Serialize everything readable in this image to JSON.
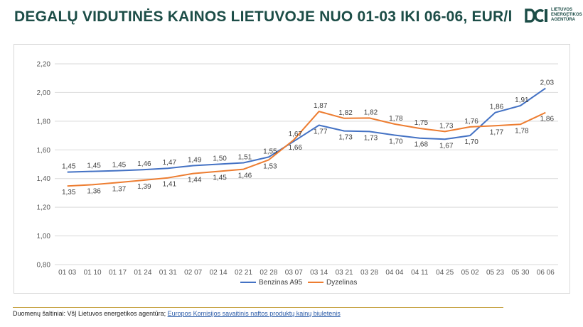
{
  "title": "DEGALŲ VIDUTINĖS KAINOS LIETUVOJE NUO 01-03 IKI 06-06, EUR/l",
  "logo": {
    "lines": [
      "LIETUVOS",
      "ENERGETIKOS",
      "AGENTŪRA"
    ],
    "color": "#1c4d47"
  },
  "footer": {
    "source_text": "Duomenų šaltiniai: VšĮ Lietuvos energetikos agentūra; ",
    "link_text": "Europos Komisijos savaitinis naftos produktų kainų biuletenis"
  },
  "chart_data": {
    "type": "line",
    "categories": [
      "01 03",
      "01 10",
      "01 17",
      "01 24",
      "01 31",
      "02 07",
      "02 14",
      "02 21",
      "02 28",
      "03 07",
      "03 14",
      "03 21",
      "03 28",
      "04 04",
      "04 11",
      "04 25",
      "05 02",
      "05 23",
      "05 30",
      "06 06"
    ],
    "y_tick_labels": [
      "0,80",
      "1,00",
      "1,20",
      "1,40",
      "1,60",
      "1,80",
      "2,00",
      "2,20"
    ],
    "ylim": [
      0.8,
      2.2
    ],
    "grid": true,
    "legend_position": "bottom",
    "series": [
      {
        "name": "Benzinas A95",
        "color": "#4472c4",
        "values": [
          1.445,
          1.45,
          1.455,
          1.462,
          1.472,
          1.49,
          1.5,
          1.51,
          1.55,
          1.66,
          1.772,
          1.732,
          1.728,
          1.703,
          1.682,
          1.674,
          1.7,
          1.86,
          1.908,
          2.03
        ],
        "labels": [
          "1,45",
          "1,45",
          "1,45",
          "1,46",
          "1,47",
          "1,49",
          "1,50",
          "1,51",
          "1,55",
          "1,66",
          "1,77",
          "1,73",
          "1,73",
          "1,70",
          "1,68",
          "1,67",
          "1,70",
          "1,86",
          "1,91",
          "2,03"
        ]
      },
      {
        "name": "Dyzelinas",
        "color": "#ed7d31",
        "values": [
          1.348,
          1.357,
          1.372,
          1.388,
          1.405,
          1.435,
          1.45,
          1.465,
          1.53,
          1.67,
          1.868,
          1.82,
          1.822,
          1.78,
          1.75,
          1.728,
          1.76,
          1.768,
          1.778,
          1.86
        ],
        "labels": [
          "1,35",
          "1,36",
          "1,37",
          "1,39",
          "1,41",
          "1,44",
          "1,45",
          "1,46",
          "1,53",
          "1,67",
          "1,87",
          "1,82",
          "1,82",
          "1,78",
          "1,75",
          "1,73",
          "1,76",
          "1,77",
          "1,78",
          "1,86"
        ]
      }
    ]
  }
}
